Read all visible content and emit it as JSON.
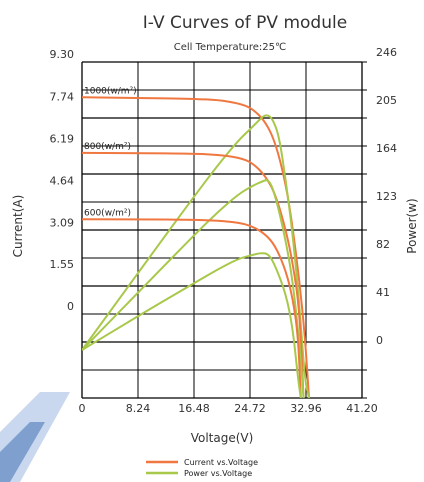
{
  "chart_data": {
    "type": "line",
    "title": "I-V Curves of PV module",
    "subtitle": "Cell Temperature:25℃",
    "xlabel": "Voltage(V)",
    "ylabel": "Current(A)",
    "y2label": "Power(w)",
    "xlim": [
      0,
      41.2
    ],
    "ylim": [
      -3.09,
      9.3
    ],
    "y2lim": [
      -41,
      246
    ],
    "x_ticks": [
      "0",
      "8.24",
      "16.48",
      "24.72",
      "32.96",
      "41.20"
    ],
    "y_ticks": [
      "0",
      "1.55",
      "3.09",
      "4.64",
      "6.19",
      "7.74",
      "9.30"
    ],
    "y2_ticks": [
      "0",
      "41",
      "82",
      "123",
      "164",
      "205",
      "246"
    ],
    "grid": true,
    "legend_position": "bottom-center",
    "legend": [
      {
        "label": "Current vs.Voltage",
        "color": "#f07840"
      },
      {
        "label": "Power vs.Voltage",
        "color": "#a8c84a"
      }
    ],
    "series": [
      {
        "kind": "current",
        "irradiance_label": "1000(w/m²)",
        "x": [
          0,
          8.24,
          16.48,
          20,
          23,
          25,
          27,
          28.5,
          30,
          31,
          32,
          32.8,
          33.4
        ],
        "y": [
          8.0,
          7.98,
          7.94,
          7.9,
          7.78,
          7.6,
          7.1,
          6.3,
          4.8,
          3.2,
          1.2,
          -0.8,
          -3.09
        ]
      },
      {
        "kind": "power",
        "irradiance_label": "1000(w/m²)",
        "x": [
          0,
          8.24,
          16.48,
          20,
          23,
          25,
          26.5,
          27.2,
          28,
          29,
          30,
          31,
          32,
          32.8,
          33.4
        ],
        "y": [
          0,
          66,
          131,
          158,
          179,
          190,
          199,
          201,
          198,
          183,
          144,
          99,
          38,
          -26,
          -41
        ]
      },
      {
        "kind": "current",
        "irradiance_label": "800(w/m²)",
        "x": [
          0,
          8.24,
          16.48,
          20,
          23,
          25,
          27,
          28.5,
          30,
          31,
          32,
          32.6
        ],
        "y": [
          5.95,
          5.94,
          5.92,
          5.88,
          5.78,
          5.6,
          5.1,
          4.4,
          3.1,
          1.9,
          0.2,
          -3.09
        ]
      },
      {
        "kind": "power",
        "irradiance_label": "800(w/m²)",
        "x": [
          0,
          8.24,
          16.48,
          20,
          23,
          25,
          26.5,
          27.5,
          28.5,
          30,
          31,
          32,
          32.6
        ],
        "y": [
          0,
          49,
          98,
          118,
          133,
          140,
          144,
          146,
          131,
          93,
          59,
          6,
          -41
        ]
      },
      {
        "kind": "current",
        "irradiance_label": "600(w/m²)",
        "x": [
          0,
          8.24,
          16.48,
          20,
          23,
          25,
          27,
          28.5,
          30,
          31,
          31.8,
          32.2
        ],
        "y": [
          3.5,
          3.5,
          3.48,
          3.45,
          3.38,
          3.25,
          2.95,
          2.5,
          1.6,
          0.6,
          -0.8,
          -3.09
        ]
      },
      {
        "kind": "power",
        "irradiance_label": "600(w/m²)",
        "x": [
          0,
          8.24,
          16.48,
          20,
          23,
          25,
          26.3,
          27.5,
          28.5,
          30,
          31,
          31.8,
          32.2
        ],
        "y": [
          0,
          29,
          57,
          69,
          78,
          81,
          83,
          82,
          71,
          48,
          19,
          -25,
          -41
        ]
      }
    ]
  }
}
